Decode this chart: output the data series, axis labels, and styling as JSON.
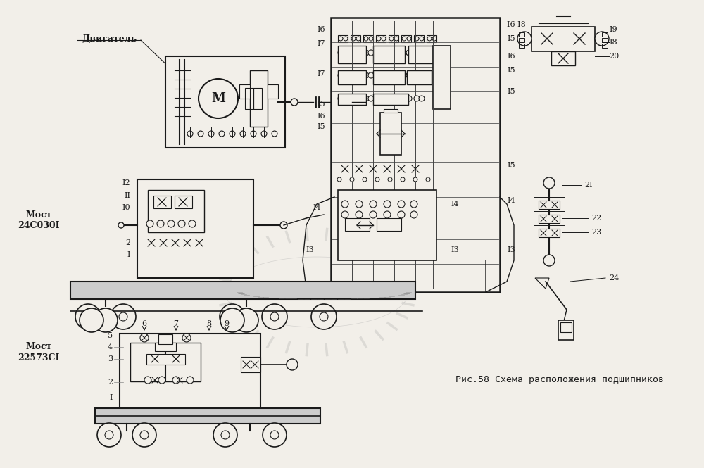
{
  "bg_color": "#f2efe9",
  "line_color": "#1a1a1a",
  "caption": "Рис.58 Схема расположения подшипников",
  "label_dvigatel": "Двигатель",
  "label_most1_line1": "Мост",
  "label_most1_line2": "24С030I",
  "label_most2_line1": "Мост",
  "label_most2_line2": "22573СI",
  "figsize": [
    10.0,
    6.65
  ],
  "dpi": 100
}
